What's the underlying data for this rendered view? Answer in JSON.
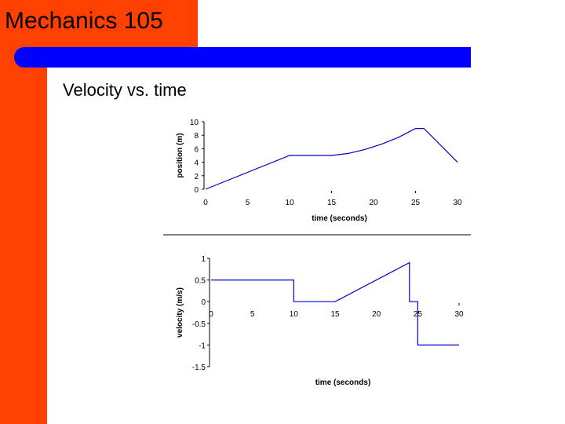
{
  "colors": {
    "sidebar": "#ff4000",
    "accent_band": "#0000ff",
    "plot_line": "#0000cc",
    "axis": "#000000"
  },
  "slide": {
    "title": "Mechanics 105",
    "heading": "Velocity vs. time"
  },
  "chart_data": [
    {
      "type": "line",
      "title": "",
      "xlabel": "time (seconds)",
      "ylabel": "position (m)",
      "xlim": [
        0,
        30
      ],
      "ylim": [
        0,
        10
      ],
      "x_ticks": [
        "0",
        "5",
        "10",
        "15",
        "20",
        "25",
        "30"
      ],
      "y_ticks": [
        "0",
        "2",
        "4",
        "6",
        "8",
        "10"
      ],
      "series": [
        {
          "name": "position",
          "x": [
            0,
            10,
            15,
            17,
            19,
            21,
            23,
            25,
            26,
            30
          ],
          "y": [
            0,
            5,
            5,
            5.3,
            5.9,
            6.7,
            7.7,
            9,
            9,
            4
          ]
        }
      ]
    },
    {
      "type": "line",
      "title": "",
      "xlabel": "time (seconds)",
      "ylabel": "velocity (m/s)",
      "xlim": [
        0,
        30
      ],
      "ylim": [
        -1.5,
        1
      ],
      "x_ticks": [
        "0",
        "5",
        "10",
        "15",
        "20",
        "25",
        "30"
      ],
      "y_ticks": [
        "1",
        "0.5",
        "0",
        "-0.5",
        "-1",
        "-1.5"
      ],
      "y_tick_values": [
        1,
        0.5,
        0,
        -0.5,
        -1,
        -1.5
      ],
      "series": [
        {
          "name": "velocity",
          "x": [
            0,
            10,
            10,
            15,
            15,
            24,
            24,
            25,
            25,
            30
          ],
          "y": [
            0.5,
            0.5,
            0,
            0,
            0,
            0.9,
            0,
            0,
            -1,
            -1
          ]
        }
      ]
    }
  ]
}
